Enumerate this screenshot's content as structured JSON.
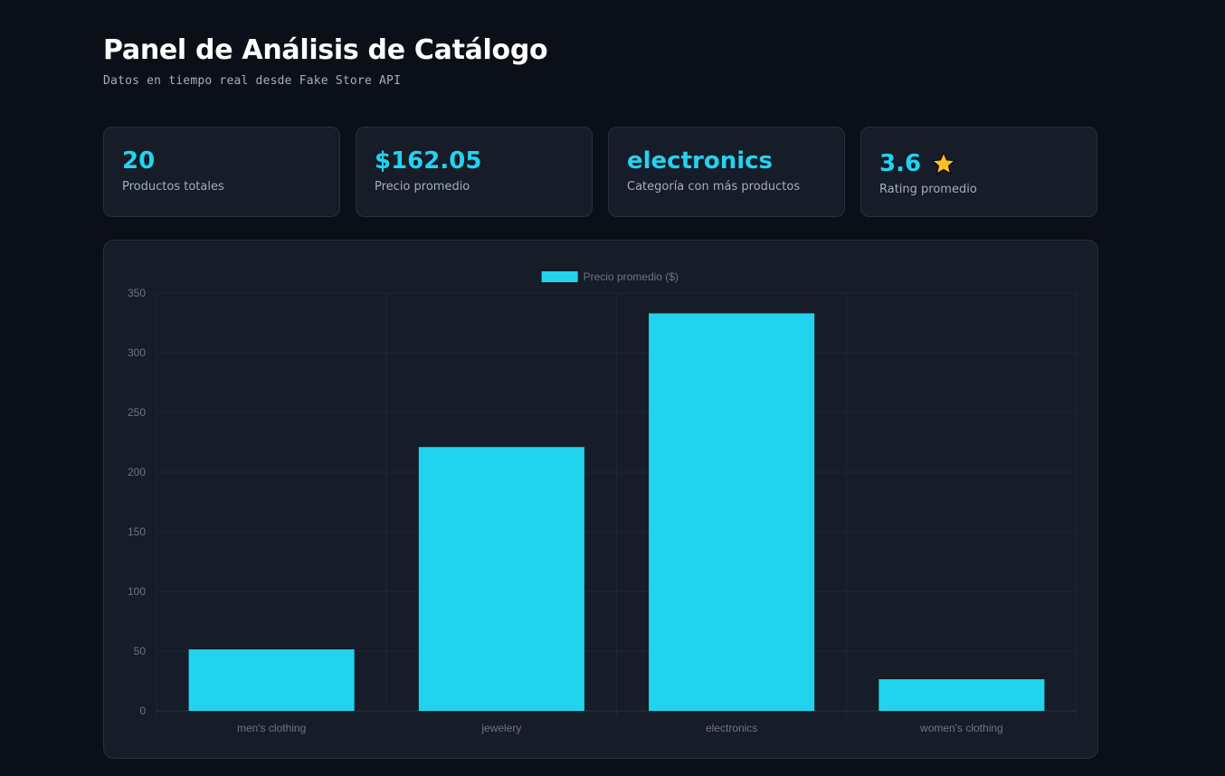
{
  "header": {
    "title": "Panel de Análisis de Catálogo",
    "subtitle": "Datos en tiempo real desde Fake Store API"
  },
  "stats": [
    {
      "value": "20",
      "label": "Productos totales"
    },
    {
      "value": "$162.05",
      "label": "Precio promedio"
    },
    {
      "value": "electronics",
      "label": "Categoría con más productos"
    },
    {
      "value": "3.6",
      "label": "Rating promedio",
      "icon": "star-icon"
    }
  ],
  "colors": {
    "accent": "#22d3ee",
    "star": "#fbbf24",
    "card": "#161c28",
    "background": "#0b0f17"
  },
  "chart_data": {
    "type": "bar",
    "categories": [
      "men's clothing",
      "jewelery",
      "electronics",
      "women's clothing"
    ],
    "series": [
      {
        "name": "Precio promedio ($)",
        "values": [
          51.5,
          221,
          333,
          26.5
        ],
        "color": "#22d3ee"
      }
    ],
    "yticks": [
      "0",
      "50",
      "100",
      "150",
      "200",
      "250",
      "300",
      "350"
    ],
    "ylim": [
      0,
      350
    ],
    "grid": true,
    "legend_position": "top-center"
  }
}
